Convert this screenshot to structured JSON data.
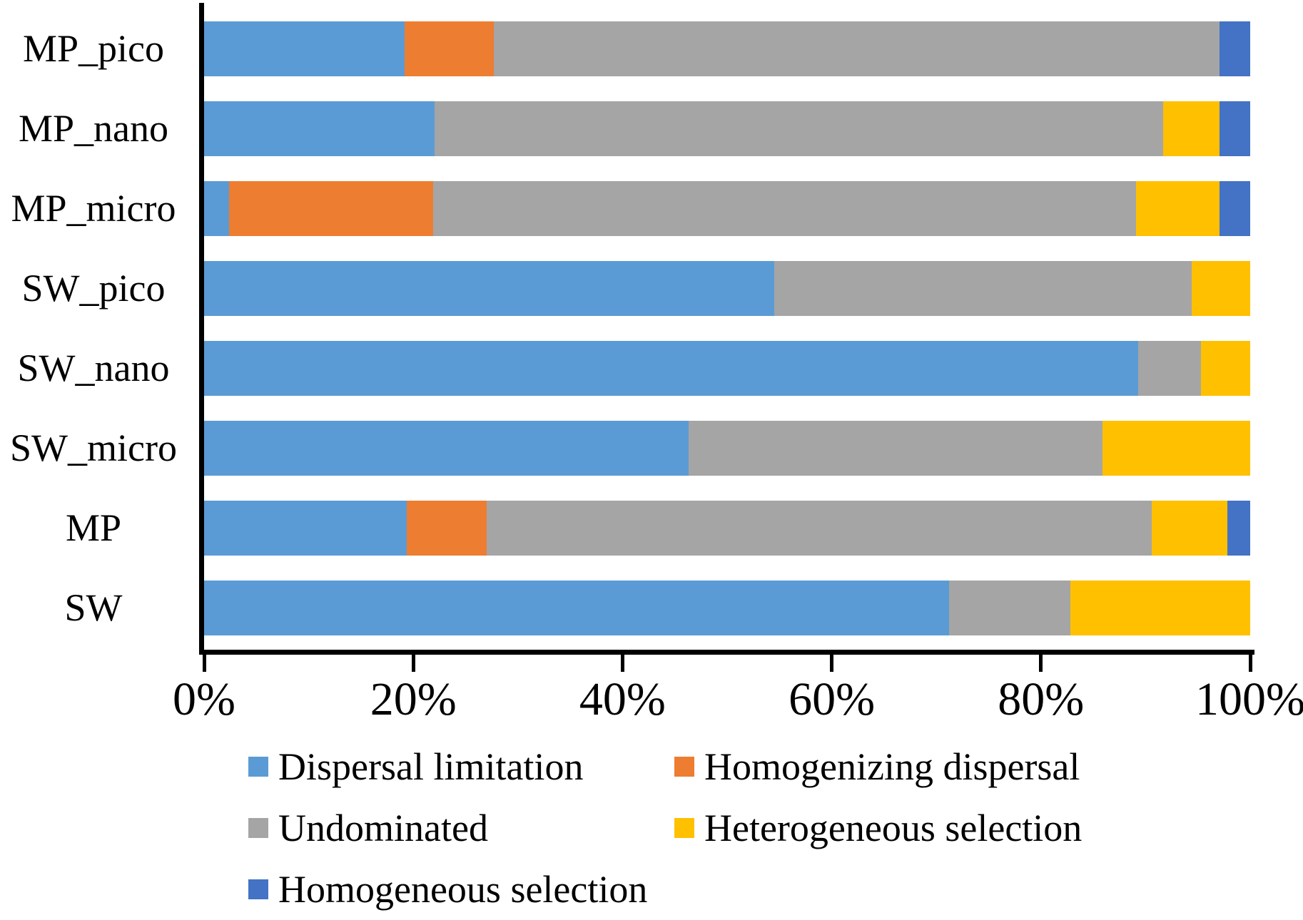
{
  "chart_data": {
    "type": "bar",
    "variant": "horizontal-stacked-100pct",
    "title": "",
    "xlabel": "",
    "ylabel": "",
    "x_axis": {
      "min": 0,
      "max": 100,
      "tick_labels": [
        "0%",
        "20%",
        "40%",
        "60%",
        "80%",
        "100%"
      ],
      "tick_values": [
        0,
        20,
        40,
        60,
        80,
        100
      ]
    },
    "grid": "off",
    "legend_position": "bottom",
    "categories": [
      "MP_pico",
      "MP_nano",
      "MP_micro",
      "SW_pico",
      "SW_nano",
      "SW_micro",
      "MP",
      "SW"
    ],
    "series": [
      {
        "name": "Dispersal limitation",
        "color": "#5B9BD5",
        "values": [
          19.2,
          22.0,
          2.4,
          54.5,
          89.3,
          46.3,
          19.4,
          71.2
        ]
      },
      {
        "name": "Homogenizing dispersal",
        "color": "#ED7D31",
        "values": [
          8.5,
          0,
          19.5,
          0,
          0,
          0,
          7.6,
          0
        ]
      },
      {
        "name": "Undominated",
        "color": "#A5A5A5",
        "values": [
          69.4,
          69.7,
          67.2,
          39.9,
          6.0,
          39.6,
          63.6,
          11.6
        ]
      },
      {
        "name": "Heterogeneous selection",
        "color": "#FFC000",
        "values": [
          0,
          5.4,
          8.0,
          5.6,
          4.7,
          14.1,
          7.2,
          17.2
        ]
      },
      {
        "name": "Homogeneous selection",
        "color": "#4472C4",
        "values": [
          2.9,
          2.9,
          2.9,
          0,
          0,
          0,
          2.2,
          0
        ]
      }
    ],
    "legend_rows": [
      [
        0,
        1
      ],
      [
        2,
        3
      ],
      [
        4
      ]
    ],
    "axis_color": "#000000",
    "background_color": "#FFFFFF"
  }
}
